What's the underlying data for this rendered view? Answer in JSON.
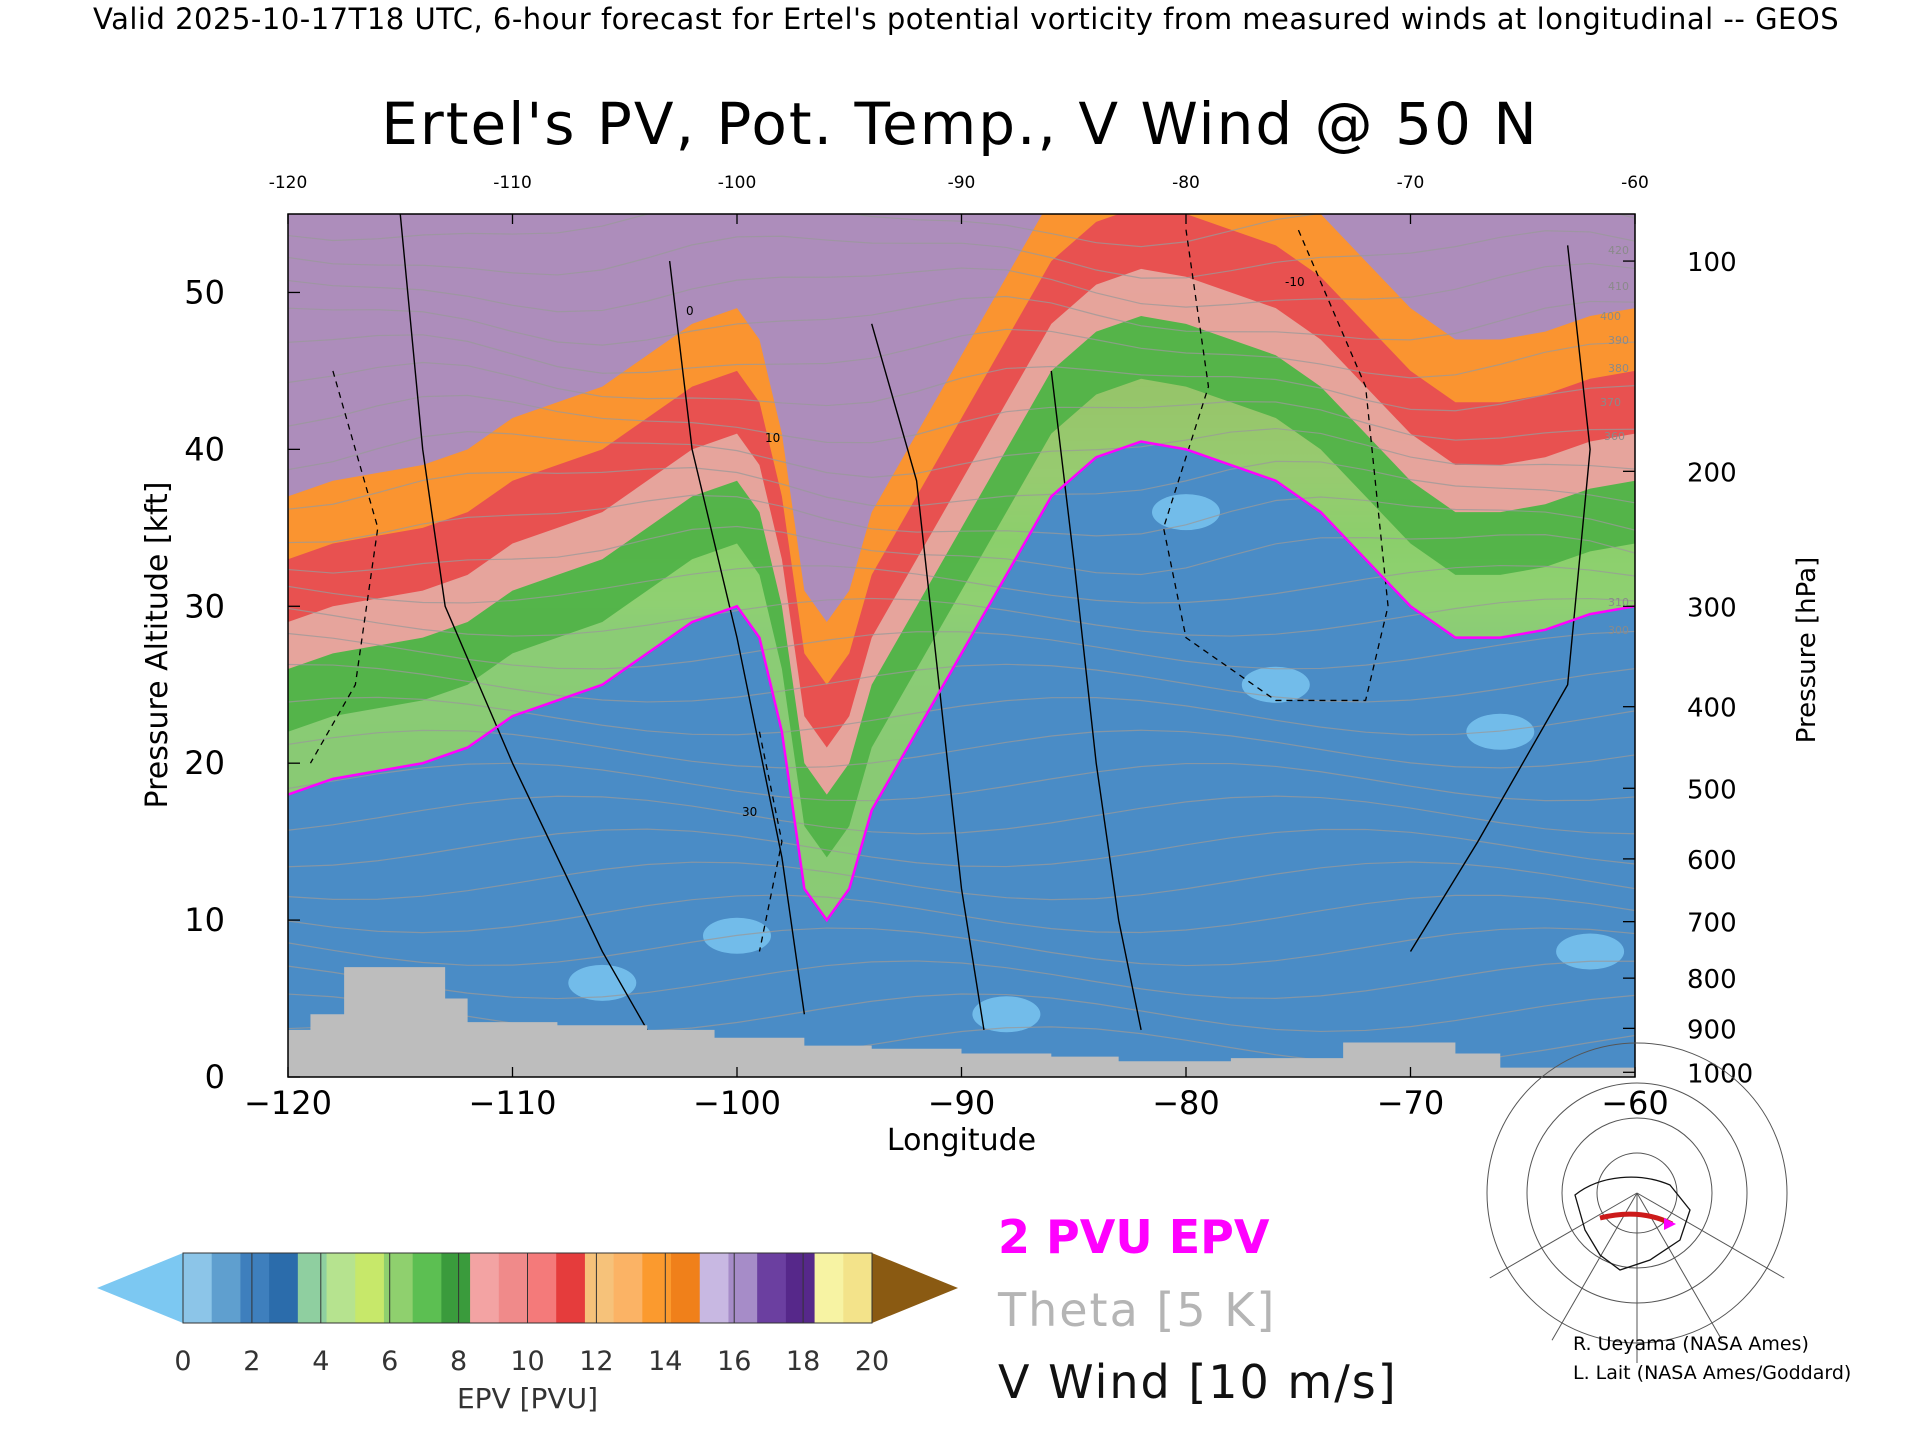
{
  "header": {
    "text": "Valid 2025-10-17T18 UTC, 6-hour forecast for Ertel's potential vorticity from measured winds at longitudinal -- GEOS"
  },
  "chart_data": {
    "type": "heatmap",
    "title": "Ertel's PV, Pot. Temp., V Wind @ 50 N",
    "xlabel": "Longitude",
    "ylabel": "Pressure Altitude [kft]",
    "y2label": "Pressure [hPa]",
    "xlim": [
      -120,
      -60
    ],
    "ylim": [
      0,
      55
    ],
    "x_ticks": [
      "−120",
      "−110",
      "−100",
      "−90",
      "−80",
      "−70",
      "−60"
    ],
    "x_tick_values": [
      -120,
      -110,
      -100,
      -90,
      -80,
      -70,
      -60
    ],
    "top_x_ticks": [
      "-120",
      "-110",
      "-100",
      "-90",
      "-80",
      "-70",
      "-60"
    ],
    "y_ticks": [
      "0",
      "10",
      "20",
      "30",
      "40",
      "50"
    ],
    "y_tick_values": [
      0,
      10,
      20,
      30,
      40,
      50
    ],
    "pressure_ticks": [
      {
        "label": "100",
        "alt": 52.0
      },
      {
        "label": "200",
        "alt": 38.6
      },
      {
        "label": "300",
        "alt": 30.0
      },
      {
        "label": "400",
        "alt": 23.6
      },
      {
        "label": "500",
        "alt": 18.4
      },
      {
        "label": "600",
        "alt": 13.9
      },
      {
        "label": "700",
        "alt": 9.9
      },
      {
        "label": "800",
        "alt": 6.3
      },
      {
        "label": "900",
        "alt": 3.1
      },
      {
        "label": "1000",
        "alt": 0.3
      }
    ],
    "colorbar": {
      "label": "EPV [PVU]",
      "ticks": [
        "0",
        "2",
        "4",
        "6",
        "8",
        "10",
        "12",
        "14",
        "16",
        "18",
        "20"
      ],
      "under_color": "#7cc8f2",
      "over_color": "#8a5a12",
      "colors": [
        "#8cc5e8",
        "#5f9fcf",
        "#3e7fbd",
        "#2b6cab",
        "#8fcfa0",
        "#b6e38f",
        "#c7e86a",
        "#8fd06e",
        "#5cbf52",
        "#3a9b3c",
        "#f3a3a3",
        "#f08a8a",
        "#f47a7a",
        "#e53c3c",
        "#f6c27a",
        "#fbb365",
        "#fb9a2e",
        "#f0801a",
        "#c8b8e2",
        "#a68cc8",
        "#6b3fa0",
        "#56288a",
        "#f7f3a3",
        "#f3e38a"
      ]
    },
    "pvu_2_contour_alt": [
      [
        -120,
        18
      ],
      [
        -118,
        19
      ],
      [
        -116,
        19.5
      ],
      [
        -114,
        20
      ],
      [
        -112,
        21
      ],
      [
        -110,
        23
      ],
      [
        -108,
        24
      ],
      [
        -106,
        25
      ],
      [
        -104,
        27
      ],
      [
        -102,
        29
      ],
      [
        -100,
        30
      ],
      [
        -99,
        28
      ],
      [
        -98,
        22
      ],
      [
        -97,
        12
      ],
      [
        -96,
        10
      ],
      [
        -95,
        12
      ],
      [
        -94,
        17
      ],
      [
        -92,
        22
      ],
      [
        -90,
        27
      ],
      [
        -88,
        32
      ],
      [
        -86,
        37
      ],
      [
        -84,
        39.5
      ],
      [
        -82,
        40.5
      ],
      [
        -80,
        40
      ],
      [
        -78,
        39
      ],
      [
        -76,
        38
      ],
      [
        -74,
        36
      ],
      [
        -72,
        33
      ],
      [
        -70,
        30
      ],
      [
        -68,
        28
      ],
      [
        -66,
        28
      ],
      [
        -64,
        28.5
      ],
      [
        -62,
        29.5
      ],
      [
        -60,
        30
      ]
    ],
    "terrain_alt": [
      [
        -120,
        3
      ],
      [
        -119,
        4
      ],
      [
        -117.5,
        7
      ],
      [
        -114,
        7
      ],
      [
        -113,
        5
      ],
      [
        -112,
        3.5
      ],
      [
        -108,
        3.3
      ],
      [
        -104,
        3
      ],
      [
        -101,
        2.5
      ],
      [
        -97,
        2
      ],
      [
        -94,
        1.8
      ],
      [
        -90,
        1.5
      ],
      [
        -86,
        1.3
      ],
      [
        -83,
        1
      ],
      [
        -78,
        1.2
      ],
      [
        -73,
        2.2
      ],
      [
        -70,
        2.2
      ],
      [
        -68,
        1.5
      ],
      [
        -66,
        0.6
      ],
      [
        -60,
        0.4
      ]
    ],
    "theta_labels": [
      "420",
      "410",
      "400",
      "390",
      "380",
      "370",
      "360",
      "310",
      "300"
    ],
    "vwind_labels": [
      "0",
      "10",
      "-10",
      "30"
    ]
  },
  "legend": {
    "pvu": "2 PVU EPV",
    "theta": "Theta [5 K]",
    "vwind": "V Wind [10 m/s]"
  },
  "credits": {
    "line1": "R. Ueyama (NASA Ames)",
    "line2": "L. Lait (NASA Ames/Goddard)"
  },
  "inset_map": {
    "description_label": "50 N cross-section location",
    "highlight_color": "#cc1a1a",
    "marker_color": "#ff00ff"
  }
}
